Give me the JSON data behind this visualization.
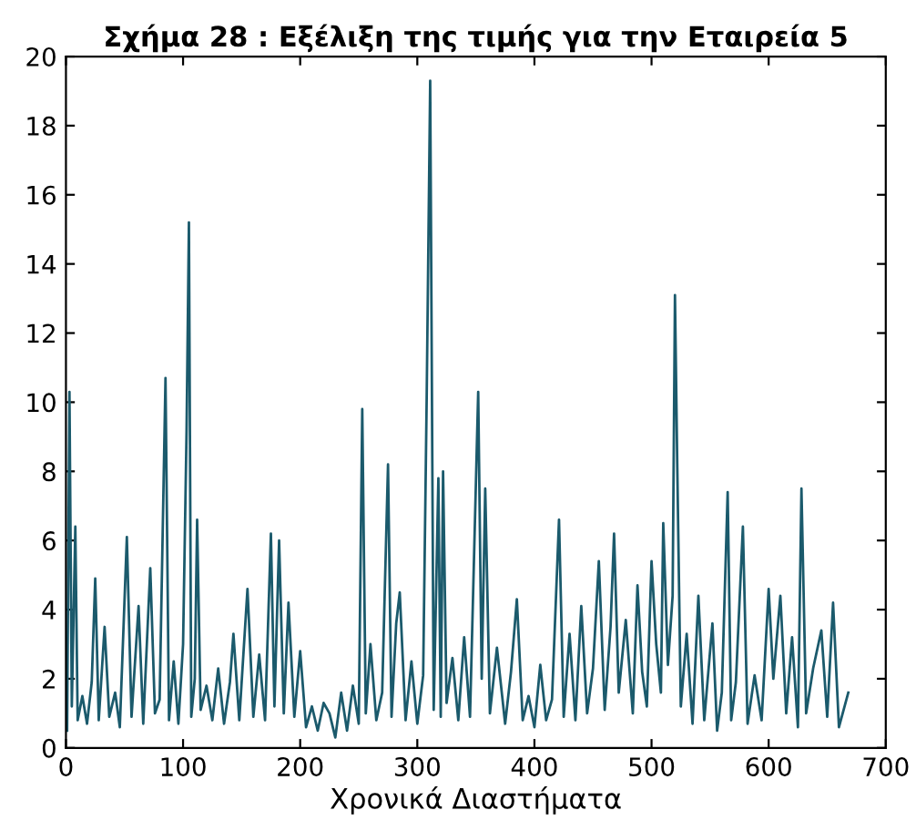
{
  "chart_data": {
    "type": "line",
    "title": "Σχήμα 28 : Εξέλιξη της τιμής για την Εταιρεία 5",
    "xlabel": "Χρονικά Διαστήματα",
    "xlim": [
      0,
      700
    ],
    "ylim": [
      0,
      20
    ],
    "xticks": [
      0,
      100,
      200,
      300,
      400,
      500,
      600,
      700
    ],
    "yticks": [
      0,
      2,
      4,
      6,
      8,
      10,
      12,
      14,
      16,
      18,
      20
    ],
    "grid": false,
    "marker": "none",
    "line_style": "solid",
    "series": [
      {
        "color": "#1b5a6c",
        "x": [
          1,
          3,
          5,
          8,
          10,
          14,
          18,
          22,
          25,
          28,
          33,
          37,
          42,
          46,
          52,
          56,
          62,
          66,
          72,
          76,
          80,
          85,
          88,
          92,
          96,
          100,
          103,
          105,
          107,
          110,
          112,
          115,
          120,
          125,
          130,
          135,
          140,
          143,
          148,
          155,
          160,
          165,
          170,
          175,
          178,
          182,
          186,
          190,
          195,
          200,
          205,
          210,
          215,
          220,
          225,
          230,
          235,
          240,
          245,
          250,
          253,
          256,
          260,
          265,
          270,
          275,
          278,
          282,
          285,
          290,
          295,
          300,
          305,
          308,
          311,
          314,
          318,
          320,
          322,
          325,
          330,
          335,
          340,
          345,
          352,
          355,
          358,
          362,
          368,
          375,
          380,
          385,
          390,
          395,
          400,
          405,
          410,
          415,
          421,
          425,
          430,
          435,
          440,
          445,
          450,
          455,
          460,
          465,
          468,
          472,
          478,
          484,
          488,
          492,
          496,
          500,
          504,
          508,
          510,
          514,
          518,
          520,
          522,
          525,
          530,
          535,
          540,
          545,
          552,
          556,
          560,
          565,
          568,
          572,
          578,
          582,
          588,
          594,
          600,
          604,
          610,
          615,
          620,
          625,
          628,
          632,
          638,
          645,
          650,
          655,
          660,
          664,
          668
        ],
        "values": [
          0.5,
          10.3,
          1.2,
          6.4,
          0.8,
          1.5,
          0.7,
          1.9,
          4.9,
          0.8,
          3.5,
          0.9,
          1.6,
          0.6,
          6.1,
          0.9,
          4.1,
          0.7,
          5.2,
          1.0,
          1.4,
          10.7,
          0.8,
          2.5,
          0.7,
          3.0,
          9.2,
          15.2,
          0.9,
          2.0,
          6.6,
          1.1,
          1.8,
          0.8,
          2.3,
          0.7,
          1.9,
          3.3,
          0.8,
          4.6,
          0.9,
          2.7,
          0.8,
          6.2,
          1.2,
          6.0,
          1.0,
          4.2,
          0.9,
          2.8,
          0.6,
          1.2,
          0.5,
          1.3,
          1.0,
          0.3,
          1.6,
          0.5,
          1.8,
          0.7,
          9.8,
          1.0,
          3.0,
          0.8,
          1.6,
          8.2,
          0.9,
          3.6,
          4.5,
          0.8,
          2.5,
          0.7,
          2.1,
          10.1,
          19.3,
          1.1,
          7.8,
          0.9,
          8.0,
          1.3,
          2.6,
          0.8,
          3.2,
          0.9,
          10.3,
          2.0,
          7.5,
          1.0,
          2.9,
          0.7,
          2.2,
          4.3,
          0.8,
          1.5,
          0.6,
          2.4,
          0.8,
          1.4,
          6.6,
          0.9,
          3.3,
          0.8,
          4.1,
          1.0,
          2.3,
          5.4,
          1.1,
          3.5,
          6.2,
          1.6,
          3.7,
          1.0,
          4.7,
          2.2,
          1.2,
          5.4,
          3.0,
          1.6,
          6.5,
          2.4,
          4.4,
          13.1,
          8.1,
          1.2,
          3.3,
          0.7,
          4.4,
          0.8,
          3.6,
          0.5,
          1.6,
          7.4,
          0.8,
          1.9,
          6.4,
          0.7,
          2.1,
          0.8,
          4.6,
          2.0,
          4.4,
          1.0,
          3.2,
          0.6,
          7.5,
          1.0,
          2.3,
          3.4,
          0.9,
          4.2,
          0.6,
          1.1,
          1.6
        ]
      }
    ]
  }
}
